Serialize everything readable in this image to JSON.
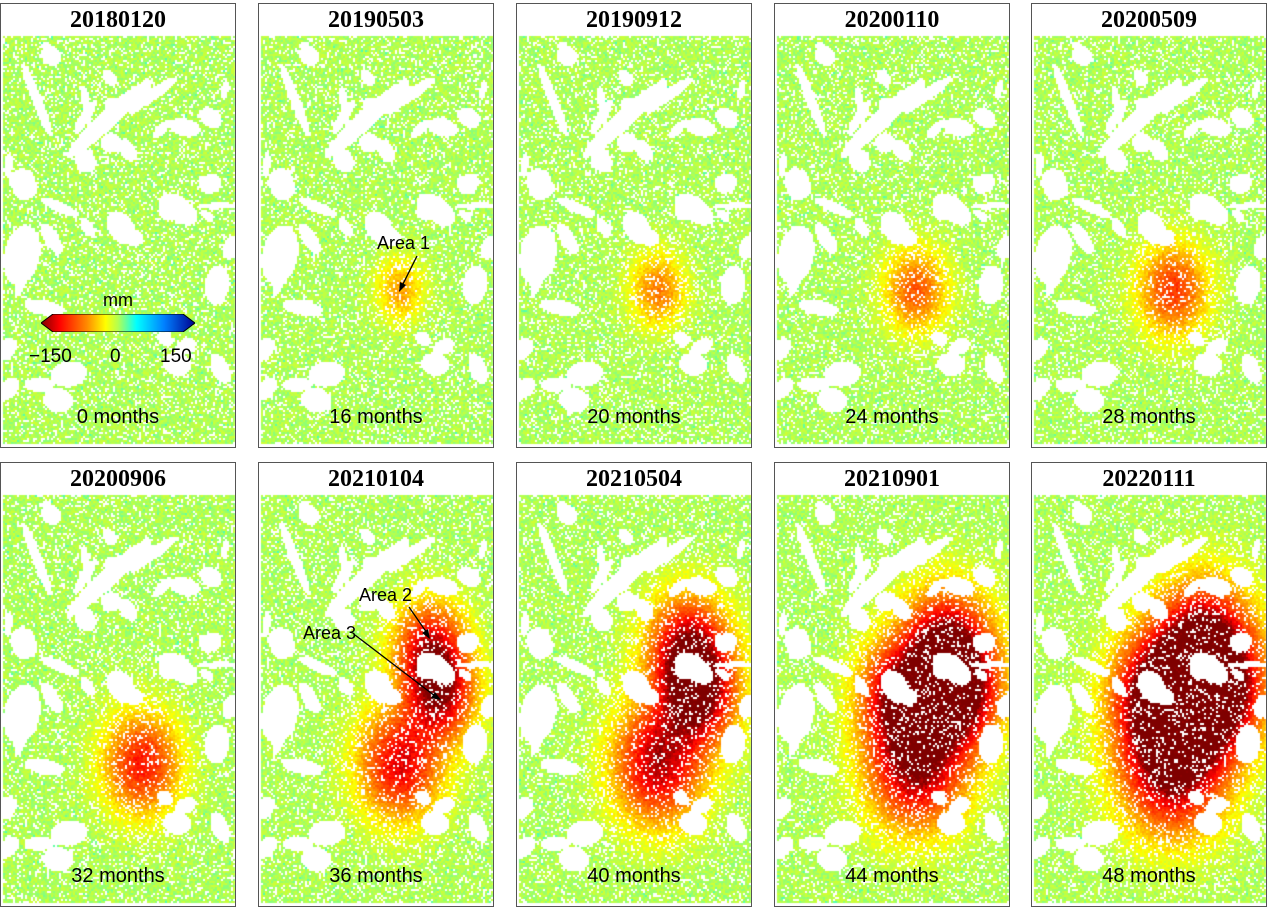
{
  "figure": {
    "panels": [
      {
        "date": "20180120",
        "months": "0 months",
        "level": 0
      },
      {
        "date": "20190503",
        "months": "16 months",
        "level": 1
      },
      {
        "date": "20190912",
        "months": "20 months",
        "level": 2
      },
      {
        "date": "20200110",
        "months": "24 months",
        "level": 3
      },
      {
        "date": "20200509",
        "months": "28 months",
        "level": 4
      },
      {
        "date": "20200906",
        "months": "32 months",
        "level": 5
      },
      {
        "date": "20210104",
        "months": "36 months",
        "level": 6
      },
      {
        "date": "20210504",
        "months": "40 months",
        "level": 7
      },
      {
        "date": "20210901",
        "months": "44 months",
        "level": 8
      },
      {
        "date": "20220111",
        "months": "48 months",
        "level": 9
      }
    ],
    "annotations": {
      "area1": "Area 1",
      "area2": "Area 2",
      "area3": "Area 3"
    },
    "colorbar": {
      "unit": "mm",
      "ticks": [
        "−150",
        "0",
        "150"
      ],
      "min": -150,
      "max": 150,
      "colormap": "jet-reversed"
    },
    "colors": {
      "background_point": "#8fd84a",
      "no_data": "#ffffff",
      "strong_subsidence": "#8b0000"
    }
  }
}
